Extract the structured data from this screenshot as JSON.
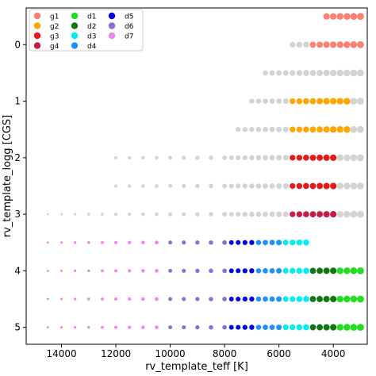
{
  "chart_data": {
    "type": "scatter",
    "xlabel": "rv_template_teff [K]",
    "ylabel": "rv_template_logg [CGS]",
    "xlim": [
      15300,
      2750
    ],
    "ylim": [
      5.3,
      -0.65
    ],
    "x_inverted": true,
    "y_inverted": true,
    "xticks": [
      14000,
      12000,
      10000,
      8000,
      6000,
      4000
    ],
    "yticks": [
      0,
      1,
      2,
      3,
      4,
      5
    ],
    "grid": false,
    "legend": {
      "placement": "top-left",
      "columns": 3,
      "entries": [
        {
          "name": "g1",
          "color": "#fa8072"
        },
        {
          "name": "g2",
          "color": "#ffa500"
        },
        {
          "name": "g3",
          "color": "#e31a1c"
        },
        {
          "name": "g4",
          "color": "#c71b45"
        },
        {
          "name": "d1",
          "color": "#22dd22"
        },
        {
          "name": "d2",
          "color": "#117711"
        },
        {
          "name": "d3",
          "color": "#00f0f0"
        },
        {
          "name": "d4",
          "color": "#1e90ff"
        },
        {
          "name": "d5",
          "color": "#0000dd"
        },
        {
          "name": "d6",
          "color": "#8a6fd6"
        },
        {
          "name": "d7",
          "color": "#ee82ee"
        }
      ]
    },
    "background_color": "#d3d3d3",
    "teff_grid": {
      "high": [
        14500,
        14000,
        13500,
        13000,
        12500,
        12000,
        11500,
        11000,
        10500,
        10000,
        9500,
        9000,
        8500,
        8000
      ],
      "low_start": 7750,
      "low_end": 3000,
      "low_step": 250,
      "logg_levels": [
        0,
        0.5,
        1,
        1.5,
        2,
        2.5,
        3,
        3.5,
        4,
        4.5,
        5
      ]
    },
    "background_rows": [
      {
        "logg": -0.5,
        "teff_min": 3000,
        "teff_max": 4250
      },
      {
        "logg": 0,
        "teff_min": 3000,
        "teff_max": 5500
      },
      {
        "logg": 0.5,
        "teff_min": 3000,
        "teff_max": 6500
      },
      {
        "logg": 1,
        "teff_min": 3000,
        "teff_max": 7000
      },
      {
        "logg": 1.5,
        "teff_min": 3000,
        "teff_max": 7500
      },
      {
        "logg": 2,
        "teff_min": 3000,
        "teff_max": 12000
      },
      {
        "logg": 2.5,
        "teff_min": 3000,
        "teff_max": 12000
      },
      {
        "logg": 3,
        "teff_min": 3000,
        "teff_max": 14500
      }
    ],
    "series": [
      {
        "name": "g1",
        "color": "#fa8072",
        "points": [
          {
            "logg": -0.5,
            "teff_min": 3000,
            "teff_max": 4250
          },
          {
            "logg": 0,
            "teff_min": 3000,
            "teff_max": 4750
          }
        ]
      },
      {
        "name": "g2",
        "color": "#ffa500",
        "points": [
          {
            "logg": 1,
            "teff_min": 3500,
            "teff_max": 5500
          },
          {
            "logg": 1.5,
            "teff_min": 3500,
            "teff_max": 5500
          }
        ]
      },
      {
        "name": "g3",
        "color": "#e31a1c",
        "points": [
          {
            "logg": 2,
            "teff_min": 4000,
            "teff_max": 5500
          },
          {
            "logg": 2.5,
            "teff_min": 4000,
            "teff_max": 5500
          }
        ]
      },
      {
        "name": "g4",
        "color": "#c71b45",
        "points": [
          {
            "logg": 3,
            "teff_min": 4000,
            "teff_max": 5500
          }
        ]
      },
      {
        "name": "d1",
        "color": "#22dd22",
        "points": [
          {
            "logg": 4,
            "teff_min": 3000,
            "teff_max": 3750
          },
          {
            "logg": 4.5,
            "teff_min": 3000,
            "teff_max": 3750
          },
          {
            "logg": 5,
            "teff_min": 3000,
            "teff_max": 3750
          }
        ]
      },
      {
        "name": "d2",
        "color": "#117711",
        "points": [
          {
            "logg": 4,
            "teff_min": 4000,
            "teff_max": 4750
          },
          {
            "logg": 4.5,
            "teff_min": 4000,
            "teff_max": 4750
          },
          {
            "logg": 5,
            "teff_min": 4000,
            "teff_max": 4750
          }
        ]
      },
      {
        "name": "d3",
        "color": "#00f0f0",
        "points": [
          {
            "logg": 3.5,
            "teff_min": 5000,
            "teff_max": 5750
          },
          {
            "logg": 4,
            "teff_min": 5000,
            "teff_max": 5750
          },
          {
            "logg": 4.5,
            "teff_min": 5000,
            "teff_max": 5750
          },
          {
            "logg": 5,
            "teff_min": 5000,
            "teff_max": 5750
          }
        ]
      },
      {
        "name": "d4",
        "color": "#1e90ff",
        "points": [
          {
            "logg": 3.5,
            "teff_min": 6000,
            "teff_max": 6750
          },
          {
            "logg": 4,
            "teff_min": 6000,
            "teff_max": 6750
          },
          {
            "logg": 4.5,
            "teff_min": 6000,
            "teff_max": 6750
          },
          {
            "logg": 5,
            "teff_min": 6000,
            "teff_max": 6750
          }
        ]
      },
      {
        "name": "d5",
        "color": "#0000dd",
        "points": [
          {
            "logg": 3.5,
            "teff_min": 7000,
            "teff_max": 7750
          },
          {
            "logg": 4,
            "teff_min": 7000,
            "teff_max": 7750
          },
          {
            "logg": 4.5,
            "teff_min": 7000,
            "teff_max": 7750
          },
          {
            "logg": 5,
            "teff_min": 7000,
            "teff_max": 7750
          }
        ]
      },
      {
        "name": "d6",
        "color": "#8a6fd6",
        "points": [
          {
            "logg": 3.5,
            "teff_min": 8000,
            "teff_max": 10000
          },
          {
            "logg": 4,
            "teff_min": 8000,
            "teff_max": 10000
          },
          {
            "logg": 4.5,
            "teff_min": 8000,
            "teff_max": 10000
          },
          {
            "logg": 5,
            "teff_min": 8000,
            "teff_max": 10000
          }
        ]
      },
      {
        "name": "d7",
        "color": "#ee82ee",
        "points": [
          {
            "logg": 3.5,
            "teff_min": 10500,
            "teff_max": 14500
          },
          {
            "logg": 4,
            "teff_min": 10500,
            "teff_max": 14500
          },
          {
            "logg": 4.5,
            "teff_min": 10500,
            "teff_max": 14500
          },
          {
            "logg": 5,
            "teff_min": 10500,
            "teff_max": 14500
          }
        ]
      }
    ]
  }
}
